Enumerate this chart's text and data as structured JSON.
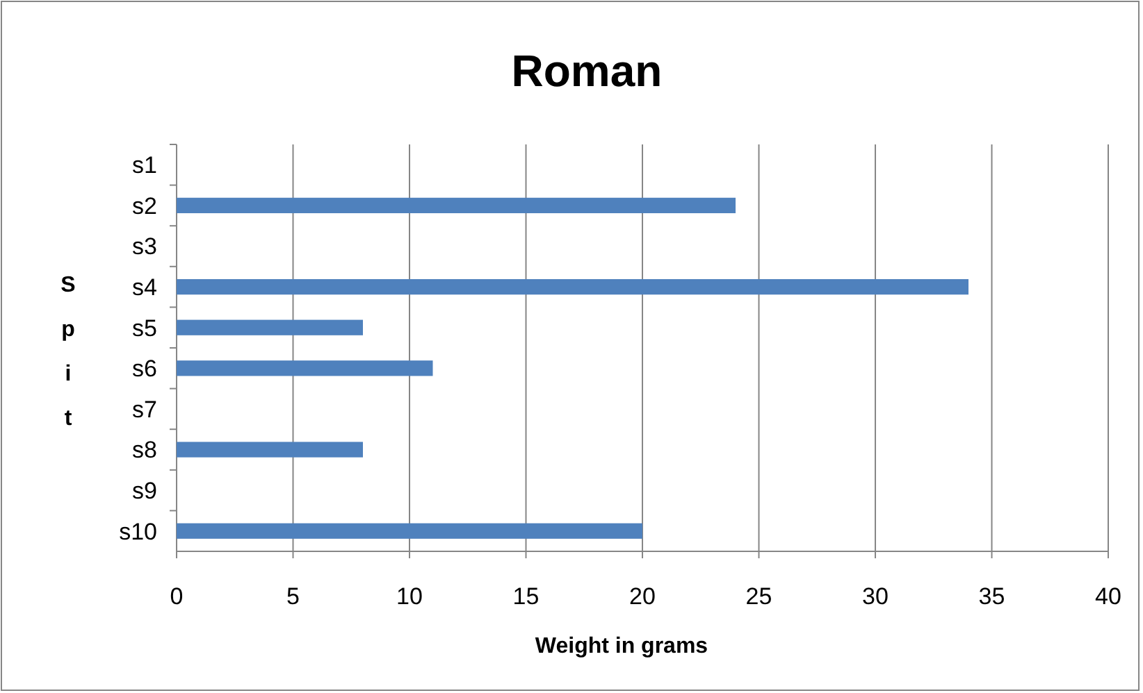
{
  "chart_data": {
    "type": "bar",
    "orientation": "horizontal",
    "title": "Roman",
    "xlabel": "Weight in grams",
    "ylabel": "Spit",
    "categories": [
      "s1",
      "s2",
      "s3",
      "s4",
      "s5",
      "s6",
      "s7",
      "s8",
      "s9",
      "s10"
    ],
    "values": [
      null,
      24,
      null,
      34,
      8,
      11,
      null,
      8,
      null,
      20
    ],
    "color": "#4f81bd",
    "xlim": [
      0,
      40
    ],
    "xticks": [
      0,
      5,
      10,
      15,
      20,
      25,
      30,
      35,
      40
    ],
    "grid": "x"
  }
}
